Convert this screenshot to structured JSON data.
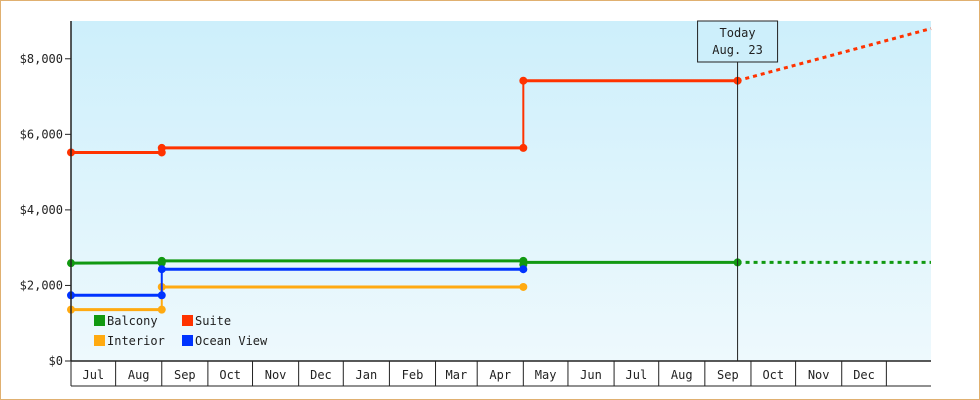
{
  "chart_data": {
    "type": "line",
    "title": "",
    "xlabel": "",
    "ylabel": "",
    "ylim": [
      0,
      9000
    ],
    "yticks": [
      0,
      2000,
      4000,
      6000,
      8000
    ],
    "ytick_labels": [
      "$0",
      "$2,000",
      "$4,000",
      "$6,000",
      "$8,000"
    ],
    "x_range": [
      "2022-06-01",
      "2023-12-31"
    ],
    "months": [
      "Jul",
      "Aug",
      "Sep",
      "Oct",
      "Nov",
      "Dec",
      "Jan",
      "Feb",
      "Mar",
      "Apr",
      "May",
      "Jun",
      "Jul",
      "Aug",
      "Sep",
      "Oct",
      "Nov",
      "Dec"
    ],
    "grid": false,
    "legend_placement": "bottom-left",
    "background_gradient": [
      "#cdeffb",
      "#eef9fd"
    ],
    "today": {
      "date": "2023-08-23",
      "label_line1": "Today",
      "label_line2": "Aug. 23"
    },
    "series": [
      {
        "name": "Balcony",
        "color": "#119911",
        "segments": [
          [
            [
              "2022-06-01",
              2590
            ],
            [
              "2022-08-01",
              2600
            ]
          ],
          [
            [
              "2022-08-01",
              2650
            ],
            [
              "2023-04-01",
              2650
            ]
          ],
          [
            [
              "2023-04-01",
              2550
            ],
            [
              "2023-04-03",
              2610
            ],
            [
              "2023-08-23",
              2610
            ]
          ]
        ],
        "projection": [
          [
            "2023-08-23",
            2610
          ],
          [
            "2023-12-31",
            2610
          ]
        ]
      },
      {
        "name": "Suite",
        "color": "#ff3300",
        "segments": [
          [
            [
              "2022-06-01",
              5520
            ],
            [
              "2022-08-01",
              5520
            ]
          ],
          [
            [
              "2022-08-01",
              5640
            ],
            [
              "2023-04-01",
              5640
            ]
          ],
          [
            [
              "2023-04-01",
              7420
            ],
            [
              "2023-08-23",
              7420
            ]
          ]
        ],
        "projection": [
          [
            "2023-08-23",
            7420
          ],
          [
            "2023-12-31",
            8800
          ]
        ]
      },
      {
        "name": "Interior",
        "color": "#ffaa11",
        "segments": [
          [
            [
              "2022-06-01",
              1360
            ],
            [
              "2022-08-01",
              1360
            ]
          ],
          [
            [
              "2022-08-01",
              1960
            ],
            [
              "2023-04-01",
              1960
            ]
          ]
        ],
        "projection": null
      },
      {
        "name": "Ocean View",
        "color": "#0033ff",
        "segments": [
          [
            [
              "2022-06-01",
              1740
            ],
            [
              "2022-08-01",
              1740
            ]
          ],
          [
            [
              "2022-08-01",
              2430
            ],
            [
              "2023-04-01",
              2430
            ]
          ]
        ],
        "projection": null
      }
    ]
  }
}
